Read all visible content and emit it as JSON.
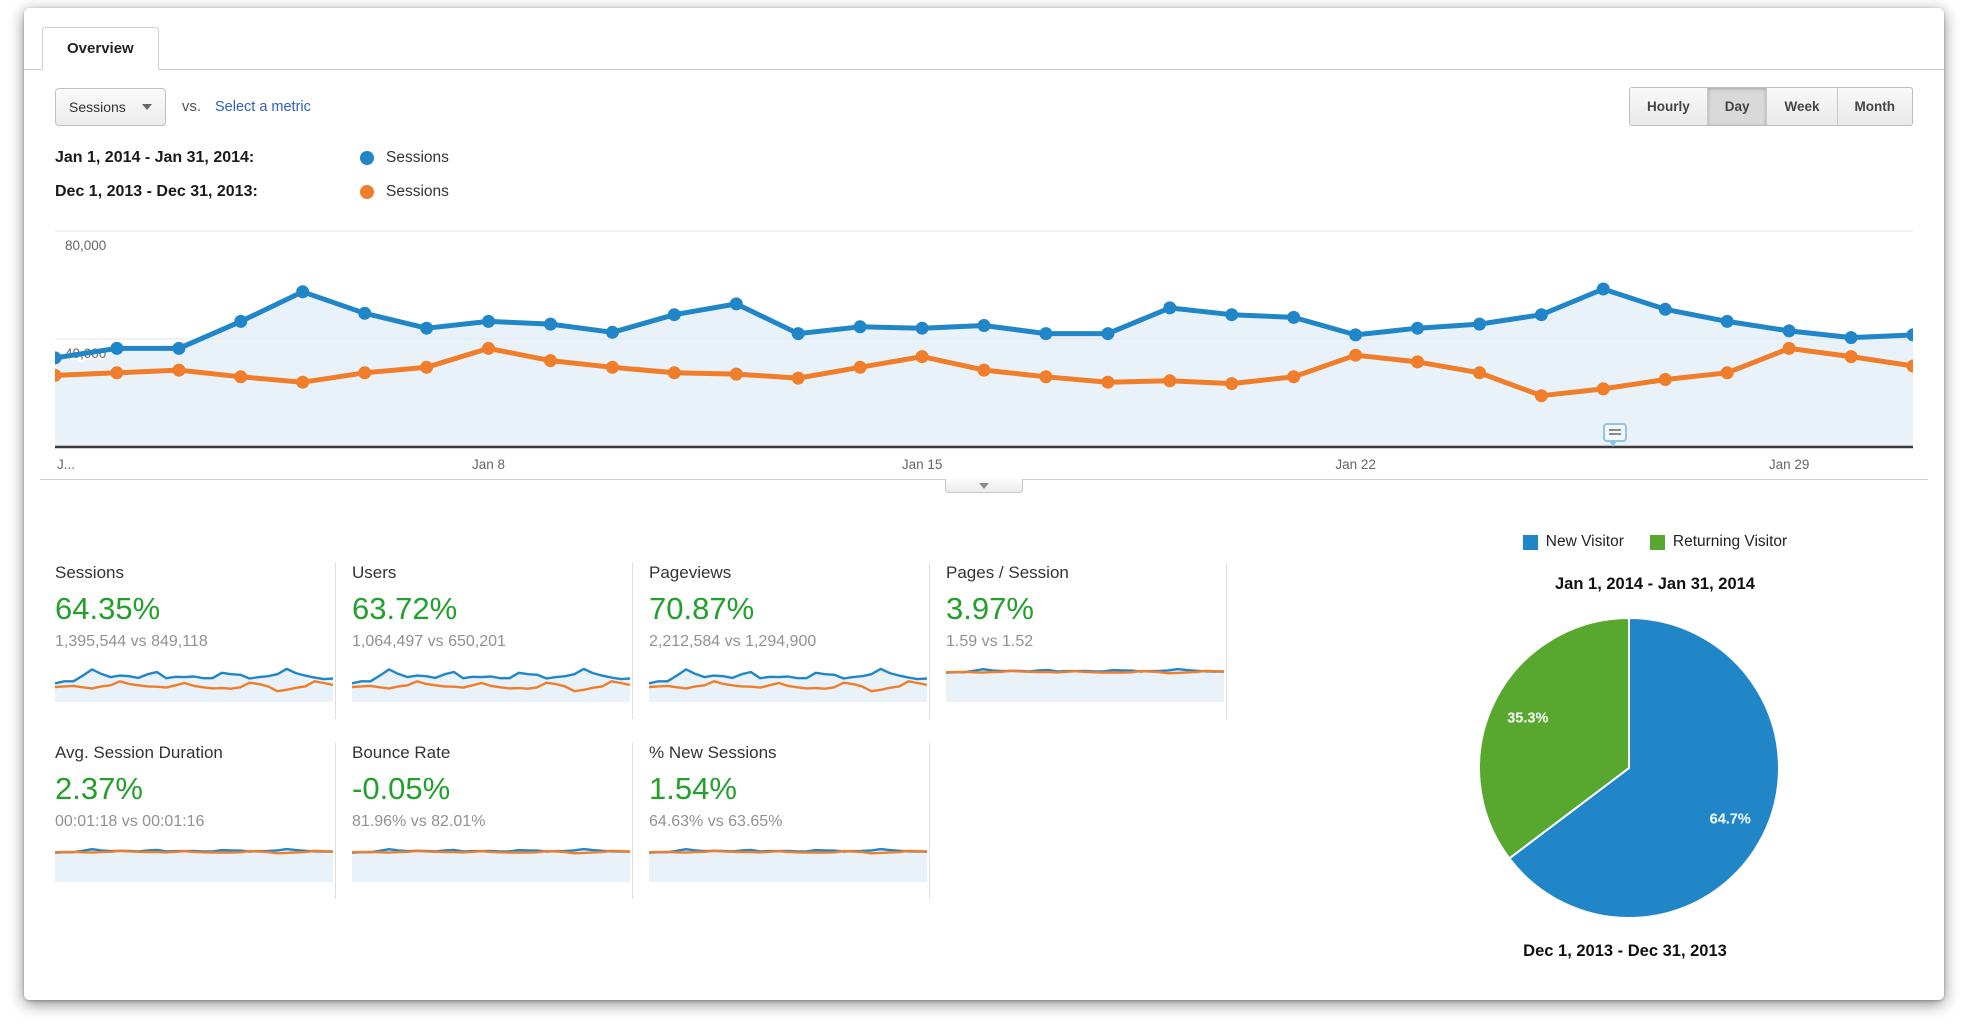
{
  "tab": {
    "label": "Overview"
  },
  "toolbar": {
    "metric_selector_value": "Sessions",
    "vs_label": "vs.",
    "select_metric_label": "Select a metric",
    "granularity_options": [
      "Hourly",
      "Day",
      "Week",
      "Month"
    ],
    "granularity_selected": "Day"
  },
  "comparison_legend": [
    {
      "date_range": "Jan 1, 2014 - Jan 31, 2014:",
      "series_label": "Sessions",
      "color": "#2086c7"
    },
    {
      "date_range": "Dec 1, 2013 - Dec 31, 2013:",
      "series_label": "Sessions",
      "color": "#ef7d29"
    }
  ],
  "chart_data": [
    {
      "type": "line",
      "x_unit": "day",
      "x_tick_labels": [
        "J...",
        "Jan 8",
        "Jan 15",
        "Jan 22",
        "Jan 29"
      ],
      "x_tick_day_indexes": [
        0,
        7,
        14,
        21,
        28
      ],
      "ylim": [
        0,
        80000
      ],
      "ytick_values": [
        40000,
        80000
      ],
      "ytick_labels": [
        "40,000",
        "80,000"
      ],
      "grid": true,
      "legend_position": "top-left",
      "series": [
        {
          "name": "Sessions (Jan 1, 2014 - Jan 31, 2014)",
          "color": "#2086c7",
          "area_fill": "#e9f2f9",
          "values": [
            33000,
            36500,
            36500,
            46500,
            57500,
            49500,
            44000,
            46500,
            45500,
            42500,
            49000,
            53000,
            42000,
            44500,
            44000,
            45000,
            42000,
            42000,
            51500,
            49000,
            48000,
            41500,
            44000,
            45500,
            49000,
            58500,
            51000,
            46500,
            43000,
            40500,
            41500
          ]
        },
        {
          "name": "Sessions (Dec 1, 2013 - Dec 31, 2013)",
          "color": "#ef7d29",
          "values": [
            26500,
            27500,
            28500,
            26000,
            24000,
            27500,
            29500,
            36500,
            32000,
            29500,
            27500,
            27000,
            25500,
            29500,
            33500,
            28500,
            26000,
            24000,
            24500,
            23500,
            26000,
            34000,
            31500,
            27500,
            19000,
            21500,
            25000,
            27500,
            36500,
            33500,
            30000
          ]
        }
      ]
    },
    {
      "type": "pie",
      "title_top": "Jan 1, 2014 - Jan 31, 2014",
      "title_bottom": "Dec 1, 2013 - Dec 31, 2013",
      "labels": [
        "New Visitor",
        "Returning Visitor"
      ],
      "values": [
        64.7,
        35.3
      ],
      "value_labels": [
        "64.7%",
        "35.3%"
      ],
      "colors": [
        "#2086c7",
        "#58a72f"
      ]
    }
  ],
  "metrics": {
    "change_color": "#23a02c",
    "rows": [
      [
        {
          "title": "Sessions",
          "change": "64.35%",
          "comparison": "1,395,544 vs 849,118",
          "spark": "volume"
        },
        {
          "title": "Users",
          "change": "63.72%",
          "comparison": "1,064,497 vs 650,201",
          "spark": "volume"
        },
        {
          "title": "Pageviews",
          "change": "70.87%",
          "comparison": "2,212,584 vs 1,294,900",
          "spark": "volume"
        },
        {
          "title": "Pages / Session",
          "change": "3.97%",
          "comparison": "1.59 vs 1.52",
          "spark": "flat"
        }
      ],
      [
        {
          "title": "Avg. Session Duration",
          "change": "2.37%",
          "comparison": "00:01:18 vs 00:01:16",
          "spark": "flat"
        },
        {
          "title": "Bounce Rate",
          "change": "-0.05%",
          "comparison": "81.96% vs 82.01%",
          "spark": "flat"
        },
        {
          "title": "% New Sessions",
          "change": "1.54%",
          "comparison": "64.63% vs 63.65%",
          "spark": "flat"
        }
      ]
    ]
  }
}
